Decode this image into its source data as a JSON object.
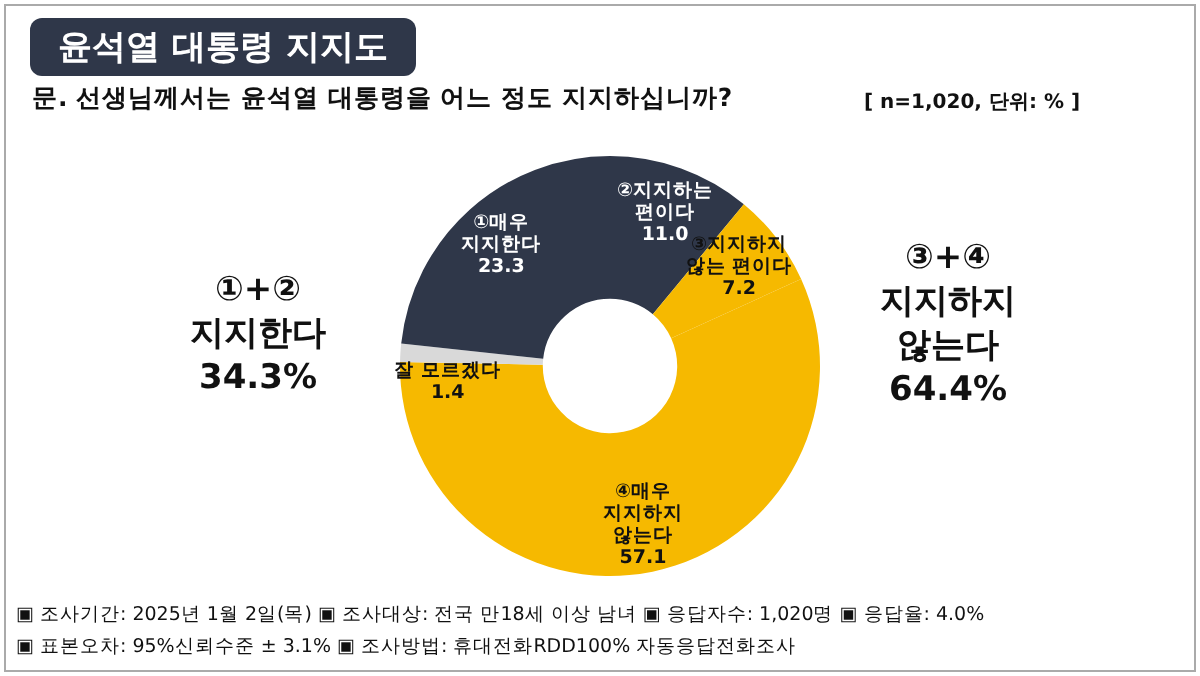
{
  "chart_data": {
    "type": "donut",
    "title": "윤석열 대통령 지지도",
    "subtitle": "문. 선생님께서는 윤석열 대통령을 어느 정도 지지하십니까?",
    "categories": [
      "②지지하는\n편이다",
      "③지지하지\n않는 편이다",
      "④매우\n지지하지\n않는다",
      "잘 모르겠다",
      "①매우\n지지한다"
    ],
    "values": [
      11.0,
      7.2,
      57.1,
      1.4,
      23.3
    ],
    "colors": [
      "#2f3749",
      "#f6b900",
      "#f6b900",
      "#d9d9d9",
      "#2f3749"
    ],
    "value_labels": [
      "11.0",
      "7.2",
      "57.1",
      "1.4",
      "23.3"
    ],
    "annotations": [
      "[ n=1,020, 단위: % ]",
      "①+②\n지지한다\n34.3%",
      "③+④\n지지하지\n않는다\n64.4%",
      "▣ 조사기간: 2025년 1월 2일(목) ▣ 조사대상: 전국 만18세 이상 남녀 ▣ 응답자수: 1,020명 ▣ 응답율: 4.0%",
      "▣ 표본오차: 95%신뢰수준 ± 3.1% ▣ 조사방법: 휴대전화RDD100% 자동응답전화조사"
    ]
  }
}
